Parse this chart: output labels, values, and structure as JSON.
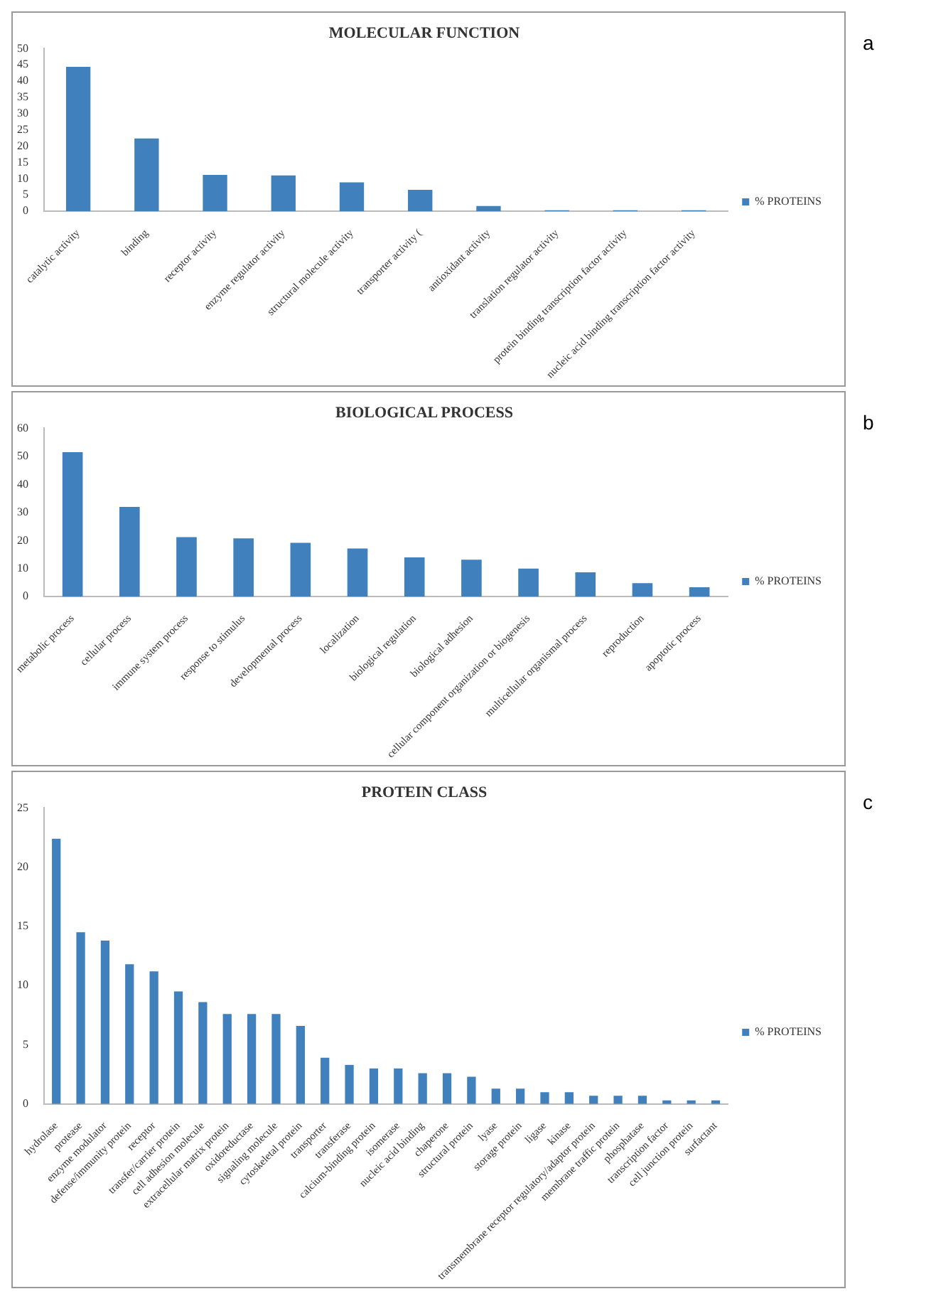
{
  "chart_data": [
    {
      "type": "bar",
      "title": "MOLECULAR FUNCTION",
      "categories": [
        "catalytic activity",
        "binding",
        "receptor activity",
        "enzyme regulator activity",
        "structural molecule activity",
        "transporter activity (",
        "antioxidant activity",
        "translation regulator activity",
        "protein binding transcription factor activity",
        "nucleic acid binding transcription factor activity"
      ],
      "series": [
        {
          "name": "% PROTEINS",
          "color": "#3f80bd",
          "values": [
            44.4,
            22.4,
            11.2,
            11.0,
            8.9,
            6.6,
            1.6,
            0.3,
            0.3,
            0.3
          ]
        }
      ],
      "ylim": [
        0,
        50
      ],
      "yticks": [
        0,
        5,
        10,
        15,
        20,
        25,
        30,
        35,
        40,
        45,
        50
      ],
      "legend": "right",
      "annotations": [
        "a"
      ]
    },
    {
      "type": "bar",
      "title": "BIOLOGICAL PROCESS",
      "categories": [
        "metabolic process",
        "cellular process",
        "immune system process",
        "response to stimulus",
        "developmental process",
        "localization",
        "biological regulation",
        "biological adhesion",
        "cellular component organization or biogenesis",
        "multicellular organismal process",
        "reproduction",
        "apoptotic process"
      ],
      "series": [
        {
          "name": "% PROTEINS",
          "color": "#3f80bd",
          "values": [
            51.5,
            32,
            21.2,
            20.8,
            19.2,
            17.2,
            14,
            13.2,
            10,
            8.7,
            4.8,
            3.4
          ]
        }
      ],
      "ylim": [
        0,
        60
      ],
      "yticks": [
        0,
        10,
        20,
        30,
        40,
        50,
        60
      ],
      "legend": "right",
      "annotations": [
        "b"
      ]
    },
    {
      "type": "bar",
      "title": "PROTEIN CLASS",
      "categories": [
        "hydrolase",
        "protease",
        "enzyme modulator",
        "defense/immunity protein",
        "receptor",
        "transfer/carrier protein",
        "cell adhesion molecule",
        "extracellular matrix protein",
        "oxidoreductase",
        "signaling molecule",
        "cytoskeletal protein",
        "transporter",
        "transferase",
        "calcium-binding protein",
        "isomerase",
        "nucleic acid binding",
        "chaperone",
        "structural protein",
        "lyase",
        "storage protein",
        "ligase",
        "kinase",
        "transmembrane receptor regulatory/adaptor protein",
        "membrane traffic protein",
        "phosphatase",
        "transcription factor",
        "cell junction protein",
        "surfactant"
      ],
      "series": [
        {
          "name": "% PROTEINS",
          "color": "#3f80bd",
          "values": [
            22.4,
            14.5,
            13.8,
            11.8,
            11.2,
            9.5,
            8.6,
            7.6,
            7.6,
            7.6,
            6.6,
            3.9,
            3.3,
            3.0,
            3.0,
            2.6,
            2.6,
            2.3,
            1.3,
            1.3,
            1.0,
            1.0,
            0.7,
            0.7,
            0.7,
            0.3,
            0.3,
            0.3
          ]
        }
      ],
      "ylim": [
        0,
        25
      ],
      "yticks": [
        0,
        5,
        10,
        15,
        20,
        25
      ],
      "legend": "right",
      "annotations": [
        "c"
      ]
    }
  ]
}
